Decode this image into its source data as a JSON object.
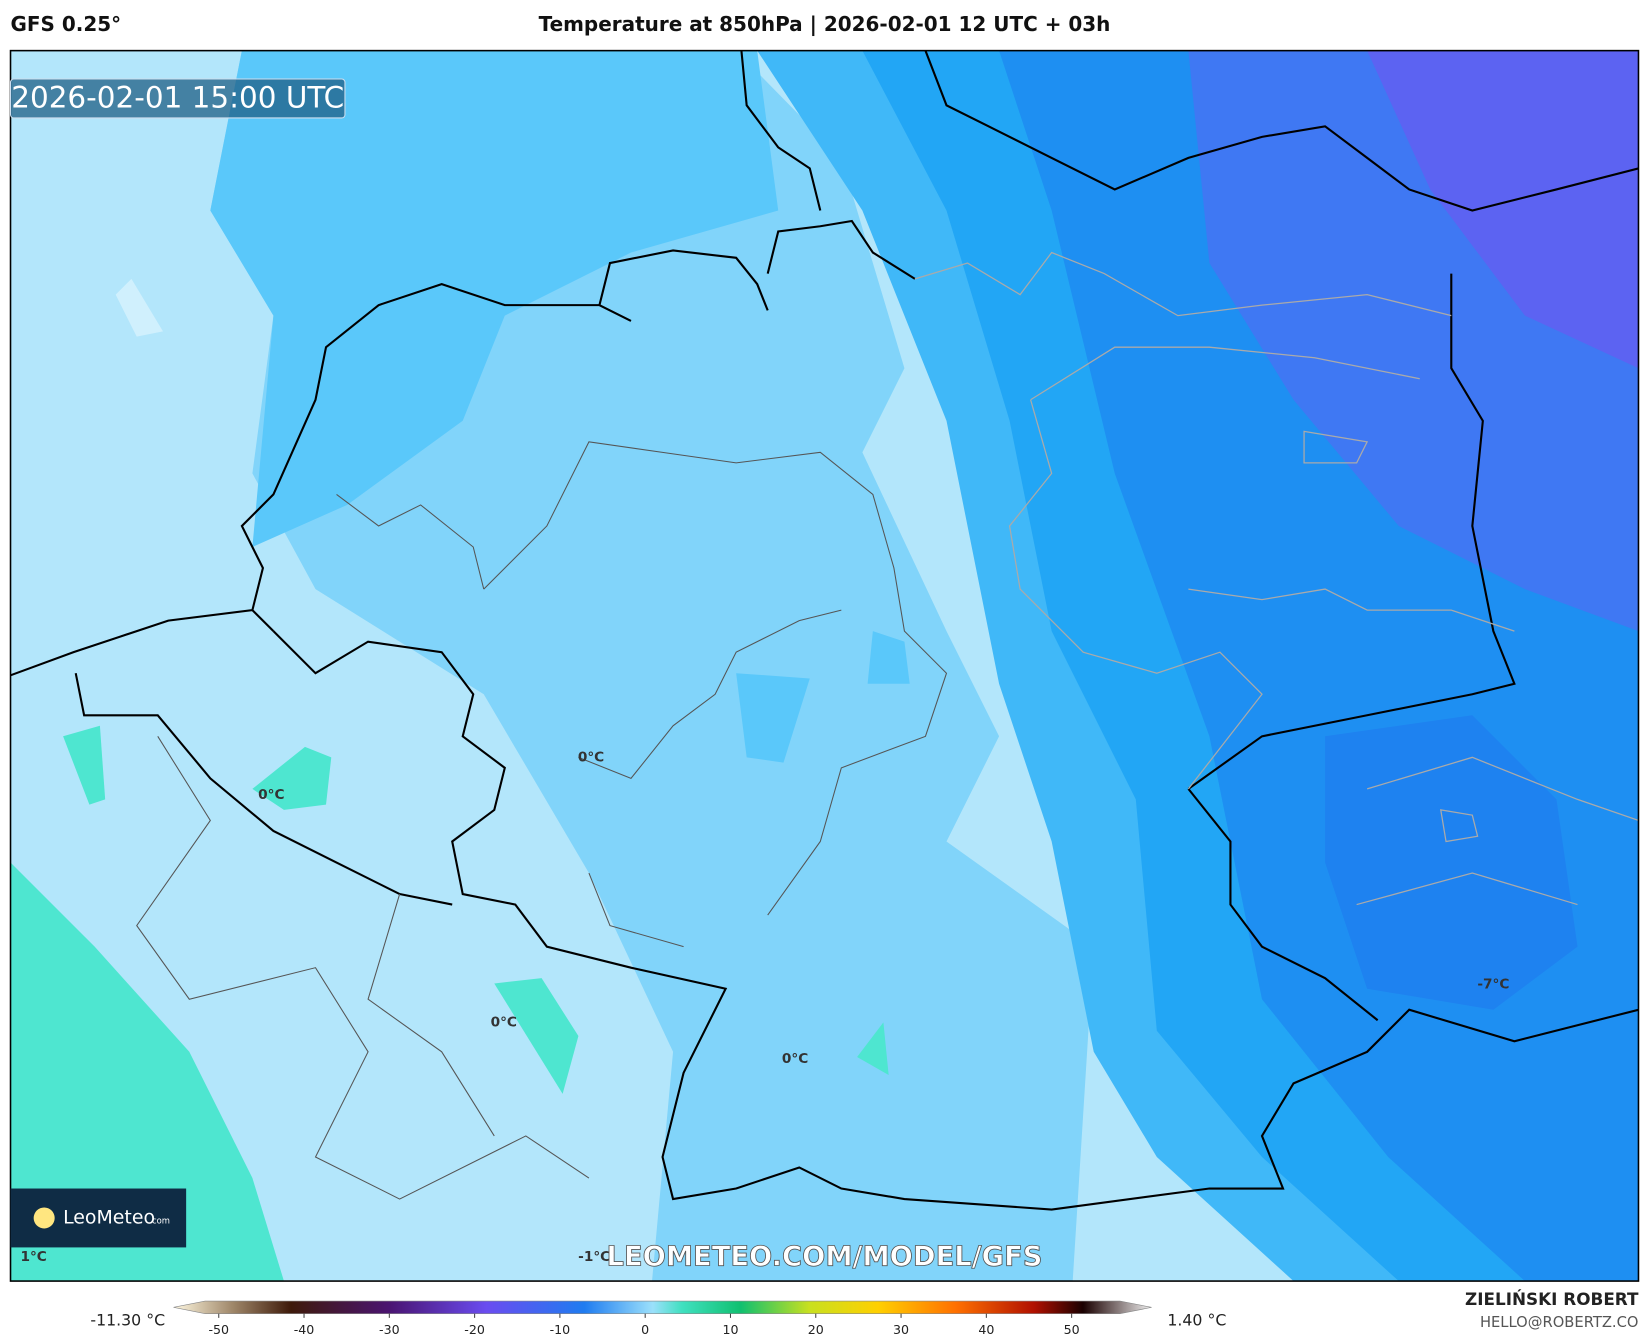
{
  "header": {
    "model": "GFS 0.25°",
    "title": "Temperature at 850hPa | 2026-02-01 12 UTC + 03h"
  },
  "map": {
    "timestamp": "2026-02-01 15:00 UTC",
    "watermark": "LEOMETEO.COM/MODEL/GFS",
    "logo": {
      "name": "LeoMeteo",
      "suffix": ".com"
    },
    "contour_labels": [
      "0°C",
      "0°C",
      "0°C",
      "0°C",
      "-7°C",
      "1°C",
      "-1°C"
    ]
  },
  "colorbar": {
    "min_label": "-11.30 °C",
    "max_label": "1.40 °C",
    "ticks": [
      -50,
      -40,
      -30,
      -20,
      -10,
      0,
      10,
      20,
      30,
      40,
      50
    ]
  },
  "footer": {
    "author": "ZIELIŃSKI ROBERT",
    "email": "HELLO@ROBERTZ.CO"
  }
}
